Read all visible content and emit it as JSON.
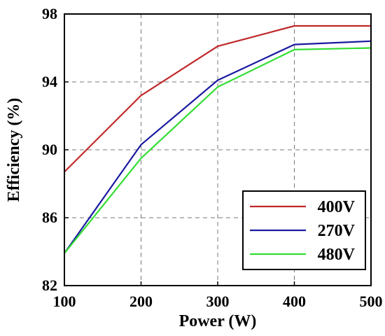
{
  "chart_data": {
    "type": "line",
    "title": "",
    "xlabel": "Power (W)",
    "ylabel": "Efficiency (%)",
    "xlim": [
      100,
      500
    ],
    "ylim": [
      82,
      98
    ],
    "xticks": [
      100,
      200,
      300,
      400,
      500
    ],
    "yticks": [
      82,
      86,
      90,
      94,
      98
    ],
    "xtick_labels": [
      "100",
      "200",
      "300",
      "400",
      "500"
    ],
    "ytick_labels": [
      "82",
      "86",
      "90",
      "94",
      "98"
    ],
    "grid": true,
    "legend_position": "bottom-right",
    "x": [
      100,
      200,
      300,
      400,
      500
    ],
    "series": [
      {
        "name": "400V",
        "color": "#c0282a",
        "values": [
          88.7,
          93.2,
          96.1,
          97.3,
          97.3
        ]
      },
      {
        "name": "270V",
        "color": "#1a1aa0",
        "values": [
          83.9,
          90.3,
          94.1,
          96.2,
          96.4
        ]
      },
      {
        "name": "480V",
        "color": "#33dd33",
        "values": [
          83.9,
          89.5,
          93.7,
          95.9,
          96.0
        ]
      }
    ]
  }
}
